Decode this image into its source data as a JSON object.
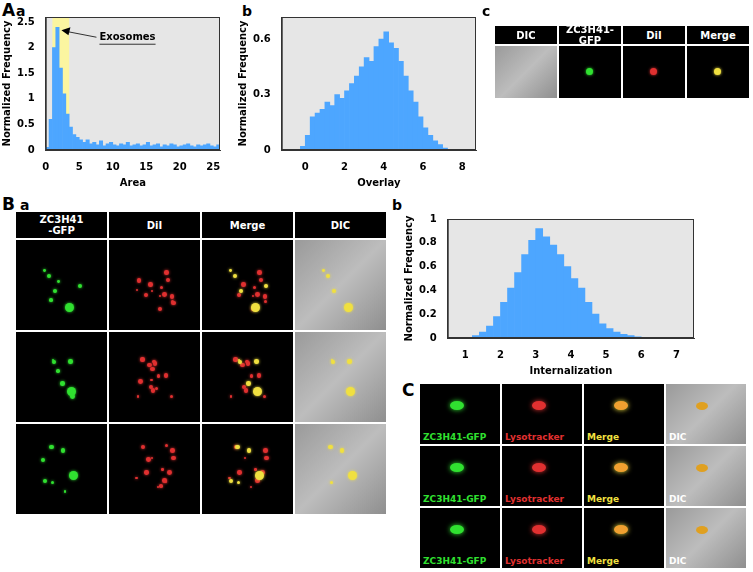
{
  "figure_labels": [
    "A",
    "B",
    "C"
  ],
  "chart_data": [
    {
      "panel": "a",
      "type": "histogram",
      "x_label": "Area",
      "y_label": "Normalized Frequency",
      "bins": [
        0,
        0.5,
        1,
        1.5,
        2,
        2.5,
        3,
        3.5,
        4,
        4.5,
        5,
        5.5,
        6,
        6.5,
        7,
        7.5,
        8,
        8.5,
        9,
        9.5,
        10,
        10.5,
        11,
        11.5,
        12,
        12.5,
        13,
        13.5,
        14,
        14.5,
        15,
        15.5,
        16,
        16.5,
        17,
        17.5,
        18,
        18.5,
        19,
        19.5,
        20,
        20.5,
        21,
        21.5,
        22,
        22.5,
        23,
        23.5,
        24,
        24.5,
        25,
        25.5,
        26
      ],
      "counts": [
        0.05,
        0.6,
        2.0,
        2.4,
        1.6,
        1.1,
        0.7,
        0.45,
        0.3,
        0.25,
        0.2,
        0.15,
        0.2,
        0.12,
        0.15,
        0.1,
        0.18,
        0.08,
        0.12,
        0.15,
        0.1,
        0.08,
        0.12,
        0.1,
        0.15,
        0.08,
        0.1,
        0.12,
        0.08,
        0.1,
        0.15,
        0.08,
        0.1,
        0.12,
        0.06,
        0.1,
        0.08,
        0.12,
        0.1,
        0.06,
        0.08,
        0.1,
        0.12,
        0.08,
        0.06,
        0.1,
        0.08,
        0.1,
        0.12,
        0.08,
        0.06,
        0.1
      ],
      "color": "#4da6ff",
      "xlim": [
        0,
        26
      ],
      "ylim": [
        0,
        2.6
      ],
      "xticks": [
        0,
        5,
        10,
        15,
        20,
        25
      ],
      "yticks": [
        0,
        0.5,
        1,
        1.5,
        2,
        2.5
      ],
      "grid": false,
      "shaded_range": [
        1,
        3.5
      ],
      "annotations": [
        {
          "text": "Exosomes"
        }
      ]
    },
    {
      "panel": "b",
      "type": "histogram",
      "x_label": "Overlay",
      "y_label": "Normalized Frequency",
      "bins": [
        -0.25,
        0,
        0.25,
        0.5,
        0.75,
        1,
        1.25,
        1.5,
        1.75,
        2,
        2.25,
        2.5,
        2.75,
        3,
        3.25,
        3.5,
        3.75,
        4,
        4.25,
        4.5,
        4.75,
        5,
        5.25,
        5.5,
        5.75,
        6,
        6.25,
        6.5,
        6.75,
        7,
        7.25
      ],
      "counts": [
        0.02,
        0.08,
        0.18,
        0.2,
        0.22,
        0.26,
        0.24,
        0.3,
        0.28,
        0.32,
        0.36,
        0.4,
        0.45,
        0.5,
        0.48,
        0.56,
        0.6,
        0.64,
        0.58,
        0.55,
        0.48,
        0.4,
        0.32,
        0.26,
        0.18,
        0.12,
        0.08,
        0.05,
        0.03,
        0.01
      ],
      "color": "#4da6ff",
      "xlim": [
        -1.2,
        8.7
      ],
      "ylim": [
        0,
        0.72
      ],
      "xticks": [
        0,
        2,
        4,
        6,
        8
      ],
      "yticks": [
        0,
        0.3,
        0.6
      ],
      "grid": false
    },
    {
      "panel": "b",
      "type": "histogram",
      "x_label": "Internalization",
      "y_label": "Normalized Frequency",
      "bins": [
        1.2,
        1.4,
        1.6,
        1.8,
        2,
        2.2,
        2.4,
        2.6,
        2.8,
        3,
        3.2,
        3.4,
        3.6,
        3.8,
        4,
        4.2,
        4.4,
        4.6,
        4.8,
        5,
        5.2,
        5.4,
        5.6,
        5.8,
        6
      ],
      "counts": [
        0.02,
        0.05,
        0.1,
        0.18,
        0.3,
        0.42,
        0.55,
        0.7,
        0.82,
        0.92,
        0.85,
        0.78,
        0.7,
        0.6,
        0.5,
        0.42,
        0.3,
        0.2,
        0.12,
        0.08,
        0.05,
        0.03,
        0.02,
        0.01
      ],
      "color": "#4da6ff",
      "xlim": [
        0.5,
        7.5
      ],
      "ylim": [
        0,
        1
      ],
      "xticks": [
        1,
        2,
        3,
        4,
        5,
        6,
        7
      ],
      "yticks": [
        0,
        0.2,
        0.4,
        0.6,
        0.8,
        1
      ],
      "grid": false
    }
  ],
  "image_panels": {
    "Ac": {
      "panel": "c",
      "headers": [
        "DIC",
        "ZC3H41-GFP",
        "DiI",
        "Merge"
      ]
    },
    "Ba": {
      "panel": "a",
      "headers": [
        "ZC3H41\n-GFP",
        "DiI",
        "Merge",
        "DIC"
      ]
    },
    "C": {
      "row_labels": [
        [
          "ZC3H41-GFP",
          "Lysotracker",
          "Merge",
          "DIC"
        ],
        [
          "ZC3H41-GFP",
          "Lysotracker",
          "Merge",
          "DIC"
        ],
        [
          "ZC3H41-GFP",
          "Lysotracker",
          "Merge",
          "DIC"
        ]
      ]
    }
  }
}
